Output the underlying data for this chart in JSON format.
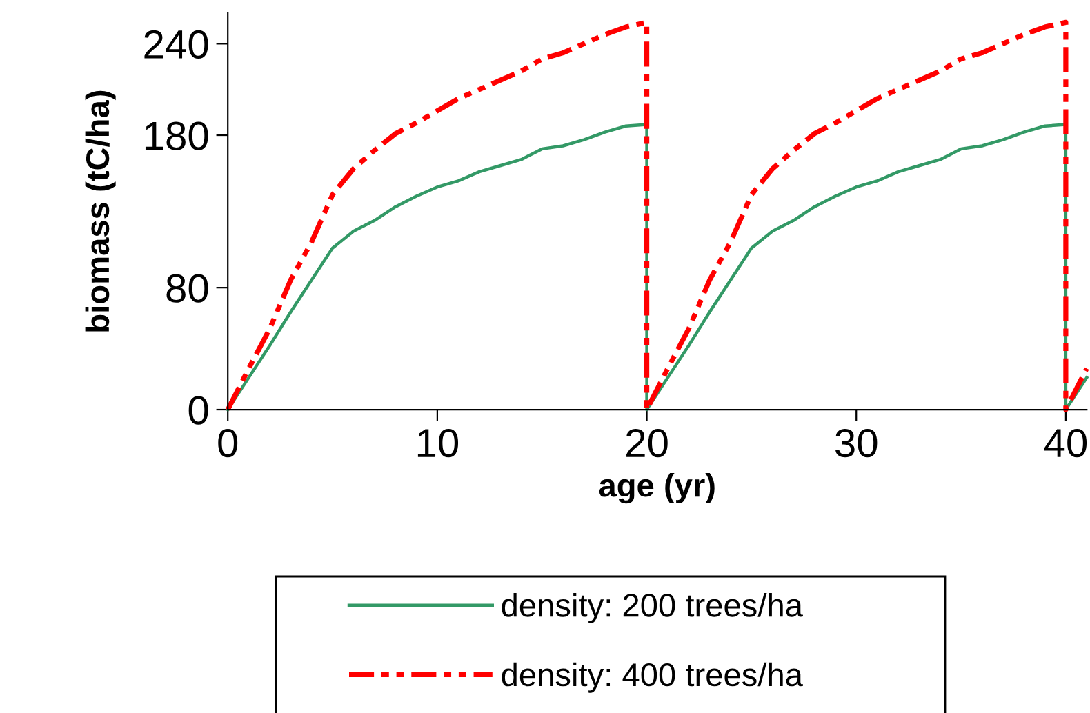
{
  "chart_data": {
    "type": "line",
    "xlabel": "age (yr)",
    "ylabel": "biomass (tC/ha)",
    "x": [
      0,
      1,
      2,
      3,
      4,
      5,
      6,
      7,
      8,
      9,
      10,
      11,
      12,
      13,
      14,
      15,
      16,
      17,
      18,
      19,
      20,
      20,
      21,
      22,
      23,
      24,
      25,
      26,
      27,
      28,
      29,
      30,
      31,
      32,
      33,
      34,
      35,
      36,
      37,
      38,
      39,
      40,
      40,
      41
    ],
    "series": [
      {
        "name": "density: 200 trees/ha",
        "color": "#339966",
        "line_style": "solid",
        "values": [
          0,
          21,
          42,
          64,
          85,
          106,
          117,
          124,
          133,
          140,
          146,
          150,
          156,
          160,
          164,
          171,
          173,
          177,
          182,
          186,
          187,
          0,
          21,
          42,
          64,
          85,
          106,
          117,
          124,
          133,
          140,
          146,
          150,
          156,
          160,
          164,
          171,
          173,
          177,
          182,
          186,
          187,
          0,
          21
        ]
      },
      {
        "name": "density: 400 trees/ha",
        "color": "#ff0000",
        "line_style": "dashed",
        "values": [
          0,
          27,
          53,
          85,
          110,
          141,
          158,
          170,
          181,
          188,
          196,
          204,
          210,
          216,
          222,
          230,
          234,
          240,
          246,
          251,
          254,
          0,
          27,
          53,
          85,
          110,
          141,
          158,
          170,
          181,
          188,
          196,
          204,
          210,
          216,
          222,
          230,
          234,
          240,
          246,
          251,
          254,
          0,
          27
        ]
      }
    ],
    "xlim": [
      0,
      41
    ],
    "xticks": [
      0,
      10,
      20,
      30,
      40
    ],
    "ylim": [
      0,
      260
    ],
    "yticks": [
      0,
      80,
      180,
      240
    ],
    "grid": false,
    "legend": "bottom"
  }
}
